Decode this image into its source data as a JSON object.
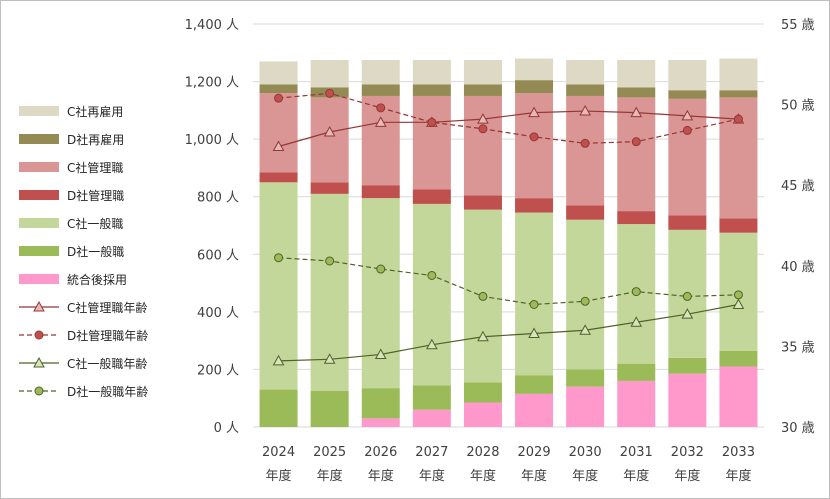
{
  "chart_data": {
    "type": "bar",
    "stacked": true,
    "categories": [
      [
        "2024",
        "年度"
      ],
      [
        "2025",
        "年度"
      ],
      [
        "2026",
        "年度"
      ],
      [
        "2027",
        "年度"
      ],
      [
        "2028",
        "年度"
      ],
      [
        "2029",
        "年度"
      ],
      [
        "2030",
        "年度"
      ],
      [
        "2031",
        "年度"
      ],
      [
        "2032",
        "年度"
      ],
      [
        "2033",
        "年度"
      ]
    ],
    "y_left": {
      "min": 0,
      "max": 1400,
      "step": 200,
      "tick_labels": [
        "0 人",
        "200 人",
        "400 人",
        "600 人",
        "800 人",
        "1,000 人",
        "1,200 人",
        "1,400 人"
      ]
    },
    "y_right": {
      "min": 30,
      "max": 55,
      "step": 5,
      "tick_labels": [
        "30 歳",
        "35 歳",
        "40 歳",
        "45 歳",
        "50 歳",
        "55 歳"
      ]
    },
    "grid": true,
    "legend_position": "left",
    "bar_series": [
      {
        "name": "統合後採用",
        "color": "#ff99cc",
        "values": [
          0,
          0,
          30,
          60,
          85,
          115,
          140,
          160,
          185,
          210
        ]
      },
      {
        "name": "D社一般職",
        "color": "#9bbb59",
        "values": [
          130,
          125,
          105,
          85,
          70,
          65,
          60,
          60,
          55,
          55
        ]
      },
      {
        "name": "C社一般職",
        "color": "#c4d79b",
        "values": [
          720,
          685,
          660,
          630,
          600,
          565,
          520,
          485,
          445,
          410
        ]
      },
      {
        "name": "D社管理職",
        "color": "#c0504d",
        "values": [
          35,
          40,
          45,
          50,
          50,
          50,
          50,
          45,
          50,
          50
        ]
      },
      {
        "name": "C社管理職",
        "color": "#da9694",
        "values": [
          275,
          295,
          310,
          325,
          345,
          365,
          380,
          395,
          405,
          420
        ]
      },
      {
        "name": "D社再雇用",
        "color": "#948a54",
        "values": [
          30,
          35,
          40,
          40,
          40,
          45,
          40,
          35,
          30,
          25
        ]
      },
      {
        "name": "C社再雇用",
        "color": "#ddd9c4",
        "values": [
          80,
          95,
          85,
          85,
          85,
          75,
          85,
          95,
          105,
          110
        ]
      }
    ],
    "line_series": [
      {
        "name": "C社管理職年齢",
        "axis": "right",
        "color": "#953735",
        "dashed": false,
        "marker": "triangle",
        "marker_fill": "#e6b8b7",
        "values": [
          47.4,
          48.3,
          48.9,
          48.9,
          49.1,
          49.5,
          49.6,
          49.5,
          49.3,
          49.1
        ]
      },
      {
        "name": "D社管理職年齢",
        "axis": "right",
        "color": "#953735",
        "dashed": true,
        "marker": "circle",
        "marker_fill": "#c0504d",
        "values": [
          50.4,
          50.7,
          49.8,
          48.9,
          48.5,
          48.0,
          47.6,
          47.7,
          48.4,
          49.1
        ]
      },
      {
        "name": "C社一般職年齢",
        "axis": "right",
        "color": "#4f6228",
        "dashed": false,
        "marker": "triangle",
        "marker_fill": "#d7e4bc",
        "values": [
          34.1,
          34.2,
          34.5,
          35.1,
          35.6,
          35.8,
          36.0,
          36.5,
          37.0,
          37.6
        ]
      },
      {
        "name": "D社一般職年齢",
        "axis": "right",
        "color": "#4f6228",
        "dashed": true,
        "marker": "circle",
        "marker_fill": "#9bbb59",
        "values": [
          40.5,
          40.3,
          39.8,
          39.4,
          38.1,
          37.6,
          37.8,
          38.4,
          38.1,
          38.2
        ]
      }
    ],
    "legend_order": [
      "C社再雇用",
      "D社再雇用",
      "C社管理職",
      "D社管理職",
      "C社一般職",
      "D社一般職",
      "統合後採用",
      "C社管理職年齢",
      "D社管理職年齢",
      "C社一般職年齢",
      "D社一般職年齢"
    ]
  }
}
